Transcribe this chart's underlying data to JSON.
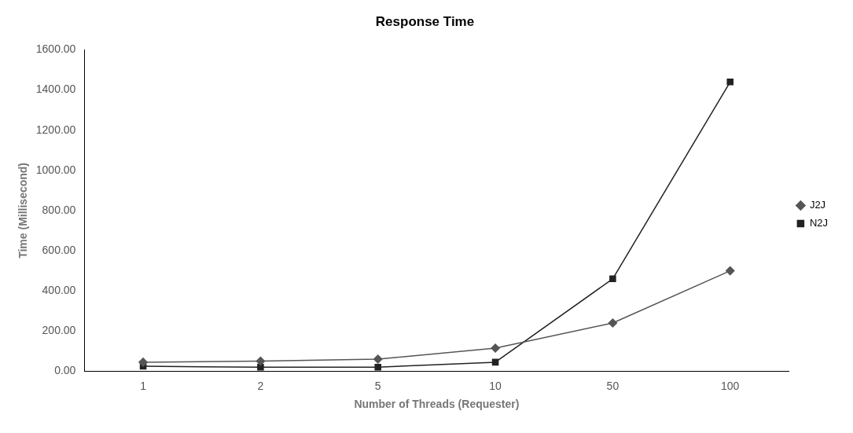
{
  "chart_data": {
    "type": "line",
    "title": "Response Time",
    "xlabel": "Number of Threads (Requester)",
    "ylabel": "Time (Millisecond)",
    "categories": [
      "1",
      "2",
      "5",
      "10",
      "50",
      "100"
    ],
    "series": [
      {
        "name": "J2J",
        "color": "#555555",
        "marker": "diamond",
        "values": [
          45,
          50,
          60,
          115,
          240,
          500
        ]
      },
      {
        "name": "N2J",
        "color": "#222222",
        "marker": "square",
        "values": [
          25,
          20,
          20,
          45,
          460,
          1440
        ]
      }
    ],
    "ylim": [
      0,
      1600
    ],
    "yticks": [
      {
        "value": 0,
        "label": "0.00"
      },
      {
        "value": 200,
        "label": "200.00"
      },
      {
        "value": 400,
        "label": "400.00"
      },
      {
        "value": 600,
        "label": "600.00"
      },
      {
        "value": 800,
        "label": "800.00"
      },
      {
        "value": 1000,
        "label": "1000.00"
      },
      {
        "value": 1200,
        "label": "1200.00"
      },
      {
        "value": 1400,
        "label": "1400.00"
      },
      {
        "value": 1600,
        "label": "1600.00"
      }
    ],
    "grid": false,
    "legend": "right"
  }
}
